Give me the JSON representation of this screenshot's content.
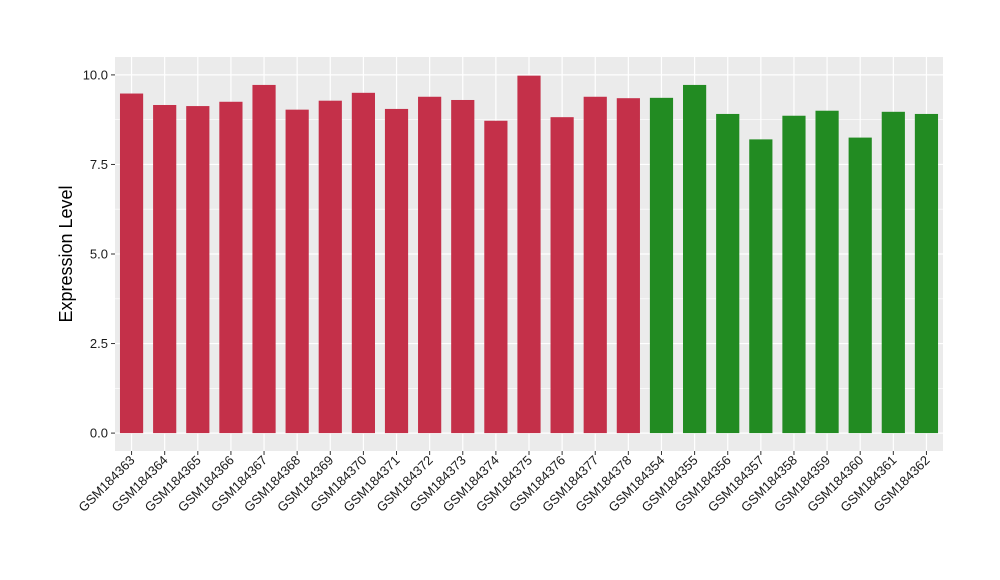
{
  "chart_data": {
    "type": "bar",
    "title": "",
    "xlabel": "",
    "ylabel": "Expression Level",
    "ylim": [
      -0.5,
      10.5
    ],
    "yticks": [
      0.0,
      2.5,
      5.0,
      7.5,
      10.0
    ],
    "ytick_labels": [
      "0.0",
      "2.5",
      "5.0",
      "7.5",
      "10.0"
    ],
    "grid": true,
    "categories": [
      "GSM184363",
      "GSM184364",
      "GSM184365",
      "GSM184366",
      "GSM184367",
      "GSM184368",
      "GSM184369",
      "GSM184370",
      "GSM184371",
      "GSM184372",
      "GSM184373",
      "GSM184374",
      "GSM184375",
      "GSM184376",
      "GSM184377",
      "GSM184378",
      "GSM184354",
      "GSM184355",
      "GSM184356",
      "GSM184357",
      "GSM184358",
      "GSM184359",
      "GSM184360",
      "GSM184361",
      "GSM184362"
    ],
    "values": [
      9.48,
      9.16,
      9.13,
      9.25,
      9.72,
      9.03,
      9.28,
      9.5,
      9.05,
      9.39,
      9.3,
      8.72,
      9.98,
      8.82,
      9.39,
      9.35,
      9.36,
      9.72,
      8.91,
      8.2,
      8.86,
      9.0,
      8.25,
      8.97,
      8.91
    ],
    "groups": [
      "a",
      "a",
      "a",
      "a",
      "a",
      "a",
      "a",
      "a",
      "a",
      "a",
      "a",
      "a",
      "a",
      "a",
      "a",
      "a",
      "b",
      "b",
      "b",
      "b",
      "b",
      "b",
      "b",
      "b",
      "b"
    ],
    "colors": {
      "a": "#C43049",
      "b": "#228B22",
      "panel": "#EBEBEB",
      "grid": "#FFFFFF"
    }
  }
}
